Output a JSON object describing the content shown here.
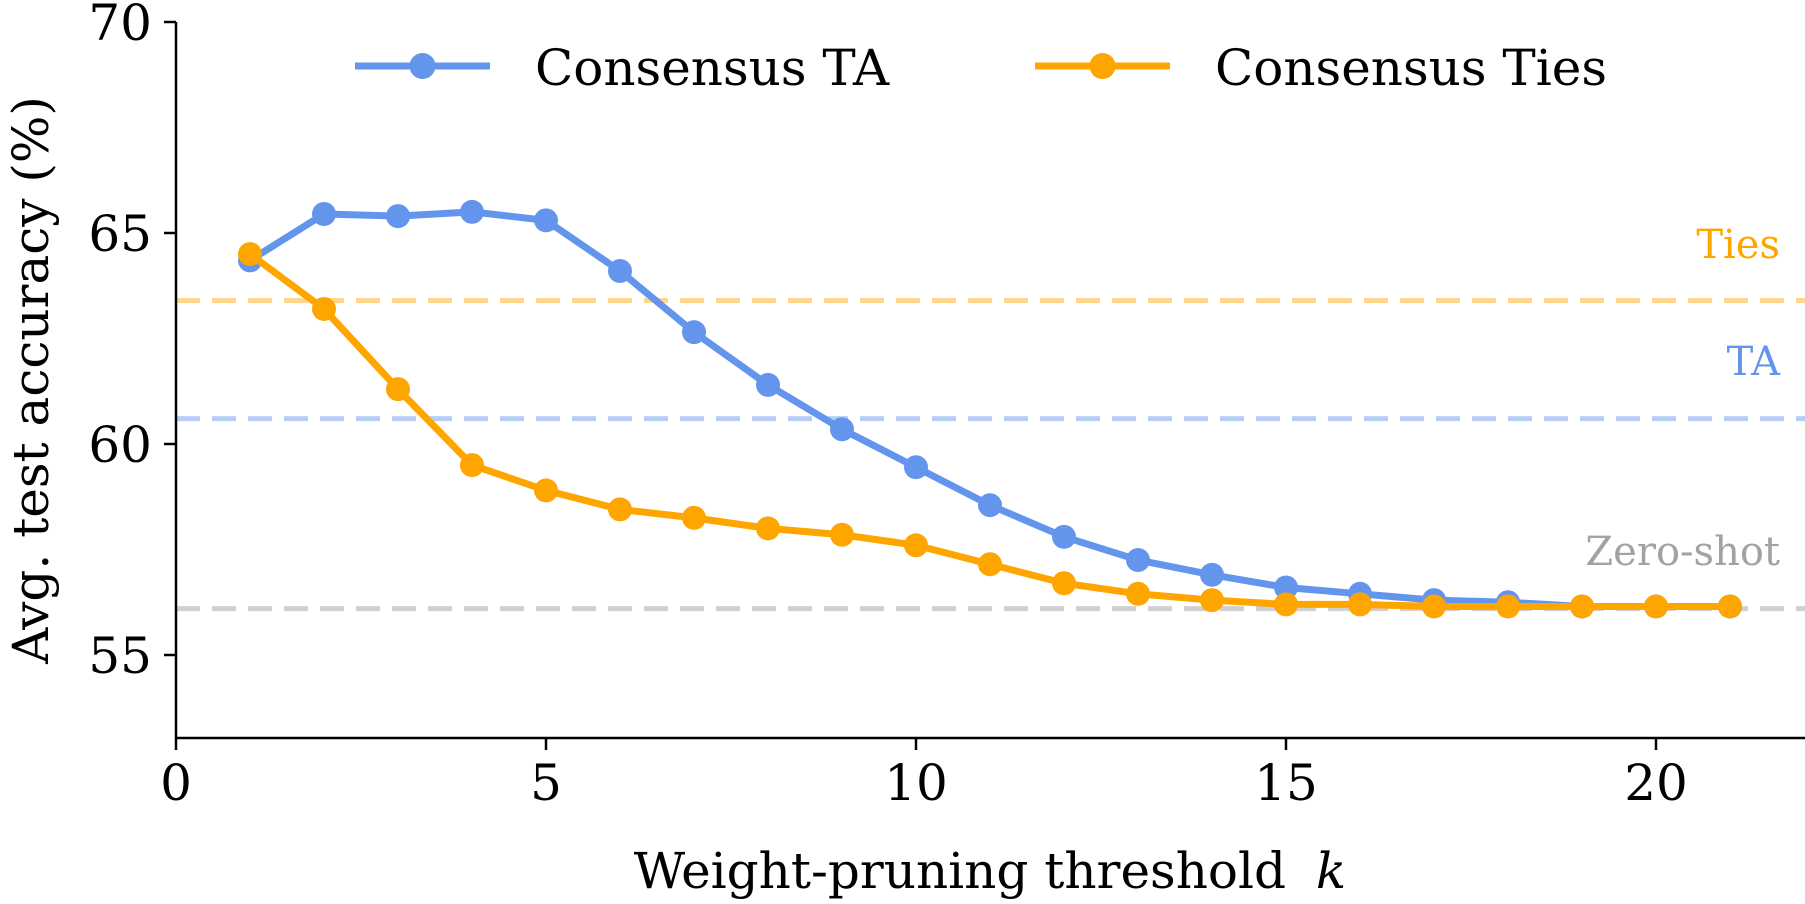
{
  "chart_data": {
    "type": "line",
    "xlabel": "Weight-pruning threshold",
    "xlabel_var": "k",
    "ylabel": "Avg. test accuracy (%)",
    "xlim": [
      0,
      22
    ],
    "ylim": [
      53,
      70
    ],
    "xticks": [
      0,
      5,
      10,
      15,
      20
    ],
    "yticks": [
      55,
      60,
      65,
      70
    ],
    "grid": false,
    "legend_position": "top",
    "x": [
      1,
      2,
      3,
      4,
      5,
      6,
      7,
      8,
      9,
      10,
      11,
      12,
      13,
      14,
      15,
      16,
      17,
      18,
      19,
      20,
      21
    ],
    "series": [
      {
        "name": "Consensus TA",
        "color": "#6495ED",
        "values": [
          64.35,
          65.45,
          65.4,
          65.5,
          65.3,
          64.1,
          62.65,
          61.4,
          60.35,
          59.45,
          58.55,
          57.8,
          57.25,
          56.9,
          56.6,
          56.45,
          56.3,
          56.25,
          56.15,
          56.15,
          56.15
        ]
      },
      {
        "name": "Consensus Ties",
        "color": "#FFA500",
        "values": [
          64.5,
          63.2,
          61.3,
          59.5,
          58.9,
          58.45,
          58.25,
          58.0,
          57.85,
          57.6,
          57.15,
          56.7,
          56.45,
          56.3,
          56.2,
          56.2,
          56.15,
          56.15,
          56.15,
          56.15,
          56.15
        ]
      }
    ],
    "reference_lines": [
      {
        "label": "Ties",
        "y": 63.4,
        "color": "#FFA500"
      },
      {
        "label": "TA",
        "y": 60.6,
        "color": "#6495ED"
      },
      {
        "label": "Zero-shot",
        "y": 56.1,
        "color": "#999999"
      }
    ]
  }
}
